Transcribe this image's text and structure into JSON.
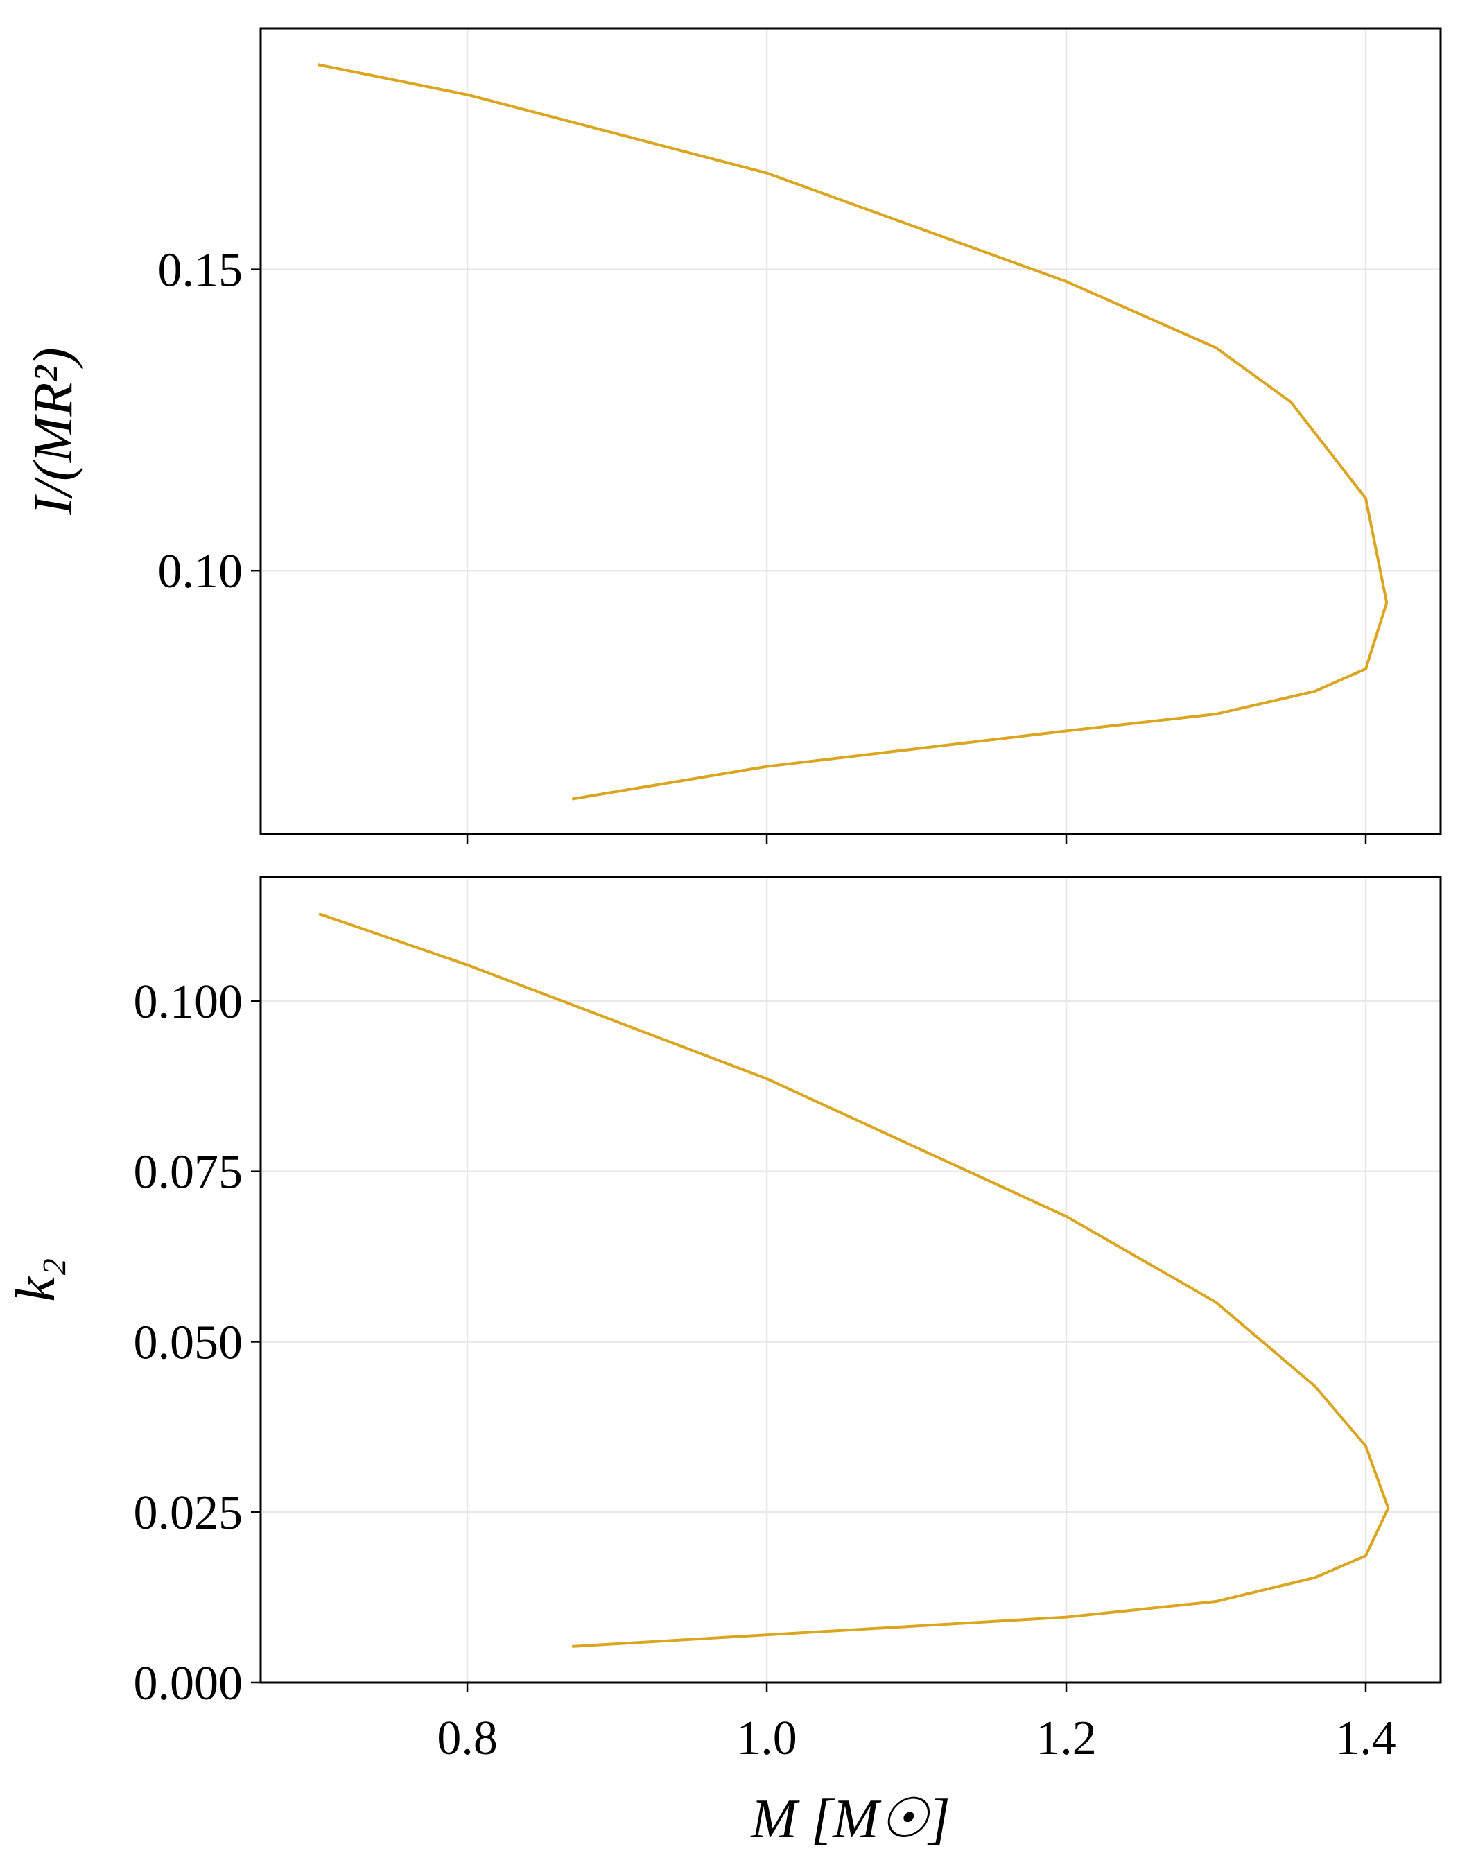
{
  "chart_data": [
    {
      "type": "line",
      "ylabel": "I/(MR²)",
      "x": [
        0.7,
        0.8,
        1.0,
        1.2,
        1.3,
        1.35,
        1.4,
        1.414,
        1.4,
        1.366,
        1.3,
        1.2,
        1.0,
        0.87
      ],
      "series": [
        {
          "name": "I/(MR²)",
          "color": "#daa520",
          "values": [
            0.184,
            0.179,
            0.166,
            0.148,
            0.137,
            0.128,
            0.112,
            0.0947,
            0.0837,
            0.08,
            0.0762,
            0.0734,
            0.0675,
            0.0621
          ]
        }
      ],
      "xlim": [
        0.662,
        1.45
      ],
      "xticks": [
        0.8,
        1,
        1.2,
        1.4
      ],
      "ylim": [
        0.0563,
        0.19
      ],
      "yticks": [
        {
          "value": 0.1,
          "label": "0.10"
        },
        0.15
      ],
      "grid": true
    },
    {
      "type": "line",
      "ylabel": "k₂",
      "xlabel": "M [M☉]",
      "x": [
        0.701,
        0.8,
        1.0,
        1.2,
        1.3,
        1.366,
        1.4,
        1.415,
        1.4,
        1.366,
        1.3,
        1.2,
        1.0,
        0.87
      ],
      "series": [
        {
          "name": "k₂",
          "color": "#daa520",
          "values": [
            0.1128,
            0.1053,
            0.0886,
            0.0684,
            0.0558,
            0.0435,
            0.0347,
            0.0256,
            0.0186,
            0.0154,
            0.0119,
            0.0096,
            0.007,
            0.0053
          ]
        }
      ],
      "xlim": [
        0.662,
        1.45
      ],
      "xticks": [
        0.8,
        {
          "value": 1,
          "label": "1.0"
        },
        1.2,
        1.4
      ],
      "ylim": [
        0,
        0.1182
      ],
      "yticks": [
        {
          "value": 0,
          "label": "0.000"
        },
        0.025,
        {
          "value": 0.05,
          "label": "0.050"
        },
        0.075,
        {
          "value": 0.1,
          "label": "0.100"
        }
      ],
      "grid": true
    }
  ]
}
